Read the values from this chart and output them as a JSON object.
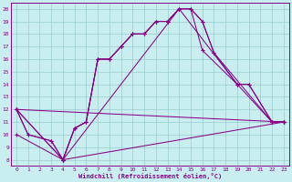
{
  "xlabel": "Windchill (Refroidissement éolien,°C)",
  "bg_color": "#c8eef0",
  "line_color": "#880088",
  "grid_color": "#99cccc",
  "xlim": [
    -0.5,
    23.5
  ],
  "ylim": [
    7.5,
    20.5
  ],
  "xticks": [
    0,
    1,
    2,
    3,
    4,
    5,
    6,
    7,
    8,
    9,
    10,
    11,
    12,
    13,
    14,
    15,
    16,
    17,
    18,
    19,
    20,
    21,
    22,
    23
  ],
  "yticks": [
    8,
    9,
    10,
    11,
    12,
    13,
    14,
    15,
    16,
    17,
    18,
    19,
    20
  ],
  "lines": [
    {
      "x": [
        0,
        1,
        3,
        4,
        5,
        6,
        7,
        8,
        9,
        10,
        11,
        12,
        13,
        14,
        15,
        16,
        17,
        22,
        23
      ],
      "y": [
        12,
        10,
        9.5,
        8,
        10.5,
        11.0,
        16.0,
        16.0,
        17.0,
        18.0,
        18.0,
        19.0,
        19.0,
        20.0,
        20.0,
        19.0,
        16.5,
        11.0,
        11.0
      ]
    },
    {
      "x": [
        0,
        1,
        3,
        4,
        5,
        6,
        7,
        8,
        9,
        10,
        11,
        12,
        13,
        14,
        15,
        16,
        17,
        19,
        20,
        22,
        23
      ],
      "y": [
        12,
        10,
        9.5,
        8,
        10.5,
        11.0,
        16.0,
        16.0,
        17.0,
        18.0,
        18.0,
        19.0,
        19.0,
        20.0,
        20.0,
        19.0,
        16.5,
        14.0,
        14.0,
        11.0,
        11.0
      ]
    },
    {
      "x": [
        0,
        4,
        5,
        6,
        7,
        8,
        9,
        10,
        11,
        12,
        13,
        14,
        15,
        16,
        19,
        20,
        22,
        23
      ],
      "y": [
        12,
        8,
        10.5,
        11.0,
        16.0,
        16.0,
        17.0,
        18.0,
        18.0,
        19.0,
        19.0,
        20.0,
        20.0,
        16.7,
        14.0,
        14.0,
        11.0,
        11.0
      ]
    },
    {
      "x": [
        0,
        4,
        14,
        19,
        22,
        23
      ],
      "y": [
        12,
        8,
        20.0,
        14.0,
        11.0,
        11.0
      ]
    },
    {
      "x": [
        0,
        23
      ],
      "y": [
        12,
        11.0
      ]
    },
    {
      "x": [
        0,
        4,
        23
      ],
      "y": [
        10,
        8,
        11.0
      ]
    }
  ]
}
